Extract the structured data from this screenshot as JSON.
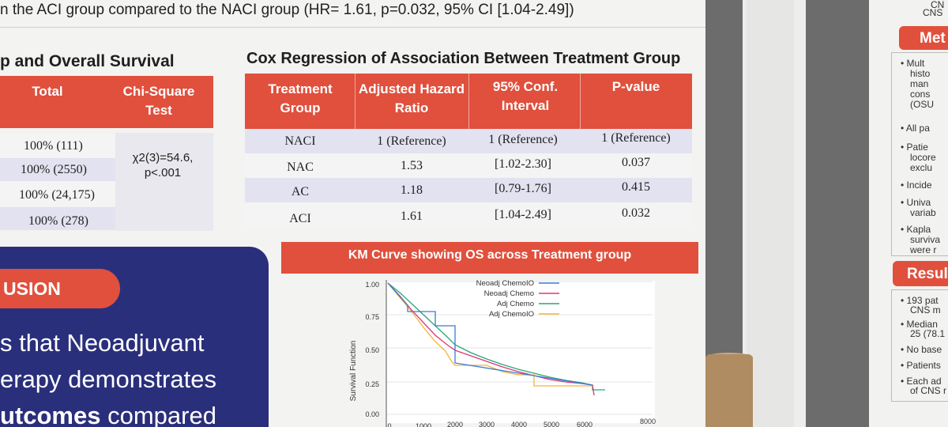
{
  "banner": "n the ACI group compared to the NACI group (HR= 1.61, p=0.032, 95% CI [1.04-2.49])",
  "left_heading": "p and Overall Survival",
  "left_table": {
    "headers": [
      "Total",
      "Chi-Square Test"
    ],
    "rows": [
      "100% (111)",
      "100% (2550)",
      "100% (24,175)",
      "100% (278)"
    ],
    "chi_square": "χ2(3)=54.6,",
    "p_value": "p<.001"
  },
  "cox": {
    "title": "Cox Regression of Association Between Treatment Group",
    "headers": [
      "Treatment Group",
      "Adjusted Hazard Ratio",
      "95% Conf. Interval",
      "P-value"
    ],
    "rows": [
      [
        "NACI",
        "1 (Reference)",
        "1 (Reference)",
        "1 (Reference)"
      ],
      [
        "NAC",
        "1.53",
        "[1.02-2.30]",
        "0.037"
      ],
      [
        "AC",
        "1.18",
        "[0.79-1.76]",
        "0.415"
      ],
      [
        "ACI",
        "1.61",
        "[1.04-2.49]",
        "0.032"
      ]
    ]
  },
  "conclusion": {
    "title": "USION",
    "lines": [
      "s that Neoadjuvant",
      "erapy demonstrates",
      "utcomes compared"
    ],
    "bold_word": "utcomes",
    "rest_word": " compared"
  },
  "km": {
    "title": "KM Curve showing OS across Treatment group",
    "ylabel": "Survival Function",
    "yticks": [
      "1.00",
      "0.75",
      "0.50",
      "0.25",
      "0.00"
    ],
    "xticks": [
      "0",
      "1000",
      "2000",
      "3000",
      "4000",
      "5000",
      "6000",
      "8000"
    ],
    "legend": [
      {
        "name": "Neoadj ChemoIO",
        "color": "#3a7bd5"
      },
      {
        "name": "Neoadj Chemo",
        "color": "#d9397a"
      },
      {
        "name": "Adj Chemo",
        "color": "#2aa675"
      },
      {
        "name": "Adj ChemoIO",
        "color": "#f2b43c"
      }
    ]
  },
  "right_panel": {
    "top_text": [
      "CN",
      "CNS"
    ],
    "methods_title": "Met",
    "methods_items": [
      "• Mult",
      "histo",
      "man",
      "cons",
      "(OSU",
      "• All pa",
      "• Patie",
      "locore",
      "exclu",
      "• Incide",
      "• Univa",
      "variab",
      "• Kapla",
      "surviva",
      "were r"
    ],
    "results_title": "Resul",
    "results_items": [
      "• 193 pat",
      "CNS m",
      "• Median",
      "25 (78.1",
      "• No base",
      "• Patients",
      "• Each ad",
      "of CNS r"
    ]
  }
}
